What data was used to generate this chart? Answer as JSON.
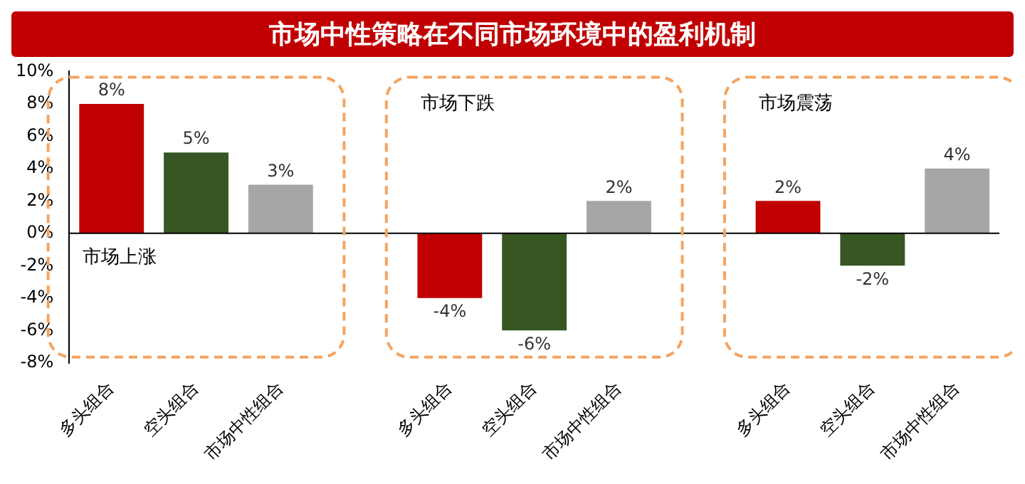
{
  "chart_data": {
    "type": "bar",
    "title": "市场中性策略在不同市场环境中的盈利机制",
    "categories": [
      "多头组合",
      "空头组合",
      "市场中性组合",
      null,
      "多头组合",
      "空头组合",
      "市场中性组合",
      null,
      "多头组合",
      "空头组合",
      "市场中性组合"
    ],
    "values": [
      8,
      5,
      3,
      null,
      -4,
      -6,
      2,
      null,
      2,
      -2,
      4
    ],
    "colors": [
      "#c00000",
      "#375623",
      "#a6a6a6",
      null,
      "#c00000",
      "#375623",
      "#a6a6a6",
      null,
      "#c00000",
      "#375623",
      "#a6a6a6"
    ],
    "value_labels": [
      "8%",
      "5%",
      "3%",
      null,
      "-4%",
      "-6%",
      "2%",
      null,
      "2%",
      "-2%",
      "4%"
    ],
    "annotations": [
      "市场上涨",
      "市场下跌",
      "市场震荡"
    ],
    "ylim": [
      -8,
      10
    ],
    "yticks": [
      {
        "value": -8,
        "label": "-8%"
      },
      {
        "value": -6,
        "label": "-6%"
      },
      {
        "value": -4,
        "label": "-4%"
      },
      {
        "value": -2,
        "label": "-2%"
      },
      {
        "value": 0,
        "label": "0%"
      },
      {
        "value": 2,
        "label": "2%"
      },
      {
        "value": 4,
        "label": "4%"
      },
      {
        "value": 6,
        "label": "6%"
      },
      {
        "value": 8,
        "label": "8%"
      },
      {
        "value": 10,
        "label": "10%"
      }
    ],
    "legend": false
  }
}
